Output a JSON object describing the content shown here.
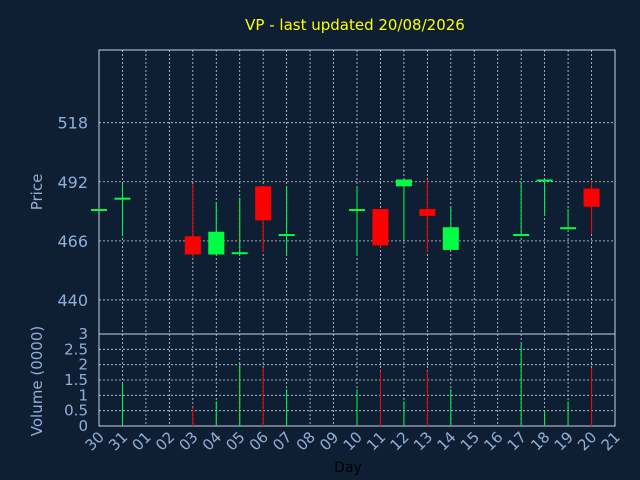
{
  "chart_data": {
    "type": "candlestick",
    "title": "VP - last updated 20/08/2026",
    "xlabel": "Day",
    "price_panel": {
      "ylabel": "Price",
      "yticks": [
        440,
        466,
        492,
        518
      ],
      "ylim": [
        425,
        550
      ]
    },
    "volume_panel": {
      "ylabel": "Volume (0000)",
      "yticks": [
        "0",
        "0.5",
        "1",
        "1.5",
        "2",
        "2.5",
        "3"
      ],
      "ylim": [
        0,
        3
      ]
    },
    "categories": [
      "30",
      "31",
      "01",
      "02",
      "03",
      "04",
      "05",
      "06",
      "07",
      "08",
      "09",
      "10",
      "11",
      "12",
      "13",
      "14",
      "15",
      "16",
      "17",
      "18",
      "19",
      "20",
      "21"
    ],
    "candles": [
      {
        "day": "30",
        "open": 480,
        "high": 480,
        "low": 480,
        "close": 480,
        "volume": 0
      },
      {
        "day": "31",
        "open": 485,
        "high": 491,
        "low": 468,
        "close": 485,
        "volume": 1.4
      },
      {
        "day": "03",
        "open": 468,
        "high": 491,
        "low": 459,
        "close": 460,
        "volume": 0.6
      },
      {
        "day": "04",
        "open": 460,
        "high": 483,
        "low": 460,
        "close": 470,
        "volume": 0.8
      },
      {
        "day": "05",
        "open": 461,
        "high": 485,
        "low": 460,
        "close": 461,
        "volume": 2.0
      },
      {
        "day": "06",
        "open": 490,
        "high": 490,
        "low": 461,
        "close": 475,
        "volume": 1.9
      },
      {
        "day": "07",
        "open": 469,
        "high": 490,
        "low": 460,
        "close": 469,
        "volume": 1.2
      },
      {
        "day": "10",
        "open": 480,
        "high": 490,
        "low": 460,
        "close": 480,
        "volume": 1.2
      },
      {
        "day": "11",
        "open": 480,
        "high": 480,
        "low": 463,
        "close": 464,
        "volume": 1.8
      },
      {
        "day": "12",
        "open": 490,
        "high": 493,
        "low": 466,
        "close": 493,
        "volume": 0.8
      },
      {
        "day": "13",
        "open": 480,
        "high": 493,
        "low": 461,
        "close": 477,
        "volume": 1.8
      },
      {
        "day": "14",
        "open": 462,
        "high": 481,
        "low": 462,
        "close": 472,
        "volume": 1.2
      },
      {
        "day": "17",
        "open": 469,
        "high": 492,
        "low": 469,
        "close": 469,
        "volume": 2.7
      },
      {
        "day": "18",
        "open": 493,
        "high": 493,
        "low": 477,
        "close": 493,
        "volume": 0.5
      },
      {
        "day": "19",
        "open": 472,
        "high": 480,
        "low": 472,
        "close": 472,
        "volume": 0.8
      },
      {
        "day": "20",
        "open": 489,
        "high": 492,
        "low": 469,
        "close": 481,
        "volume": 1.9
      }
    ],
    "colors": {
      "background": "#0f1f33",
      "up": "#00ff44",
      "down": "#ff0000",
      "title": "#ffff00",
      "axis_text": "#8fb0d8",
      "grid": "#c8d2e0"
    },
    "grid": true
  }
}
